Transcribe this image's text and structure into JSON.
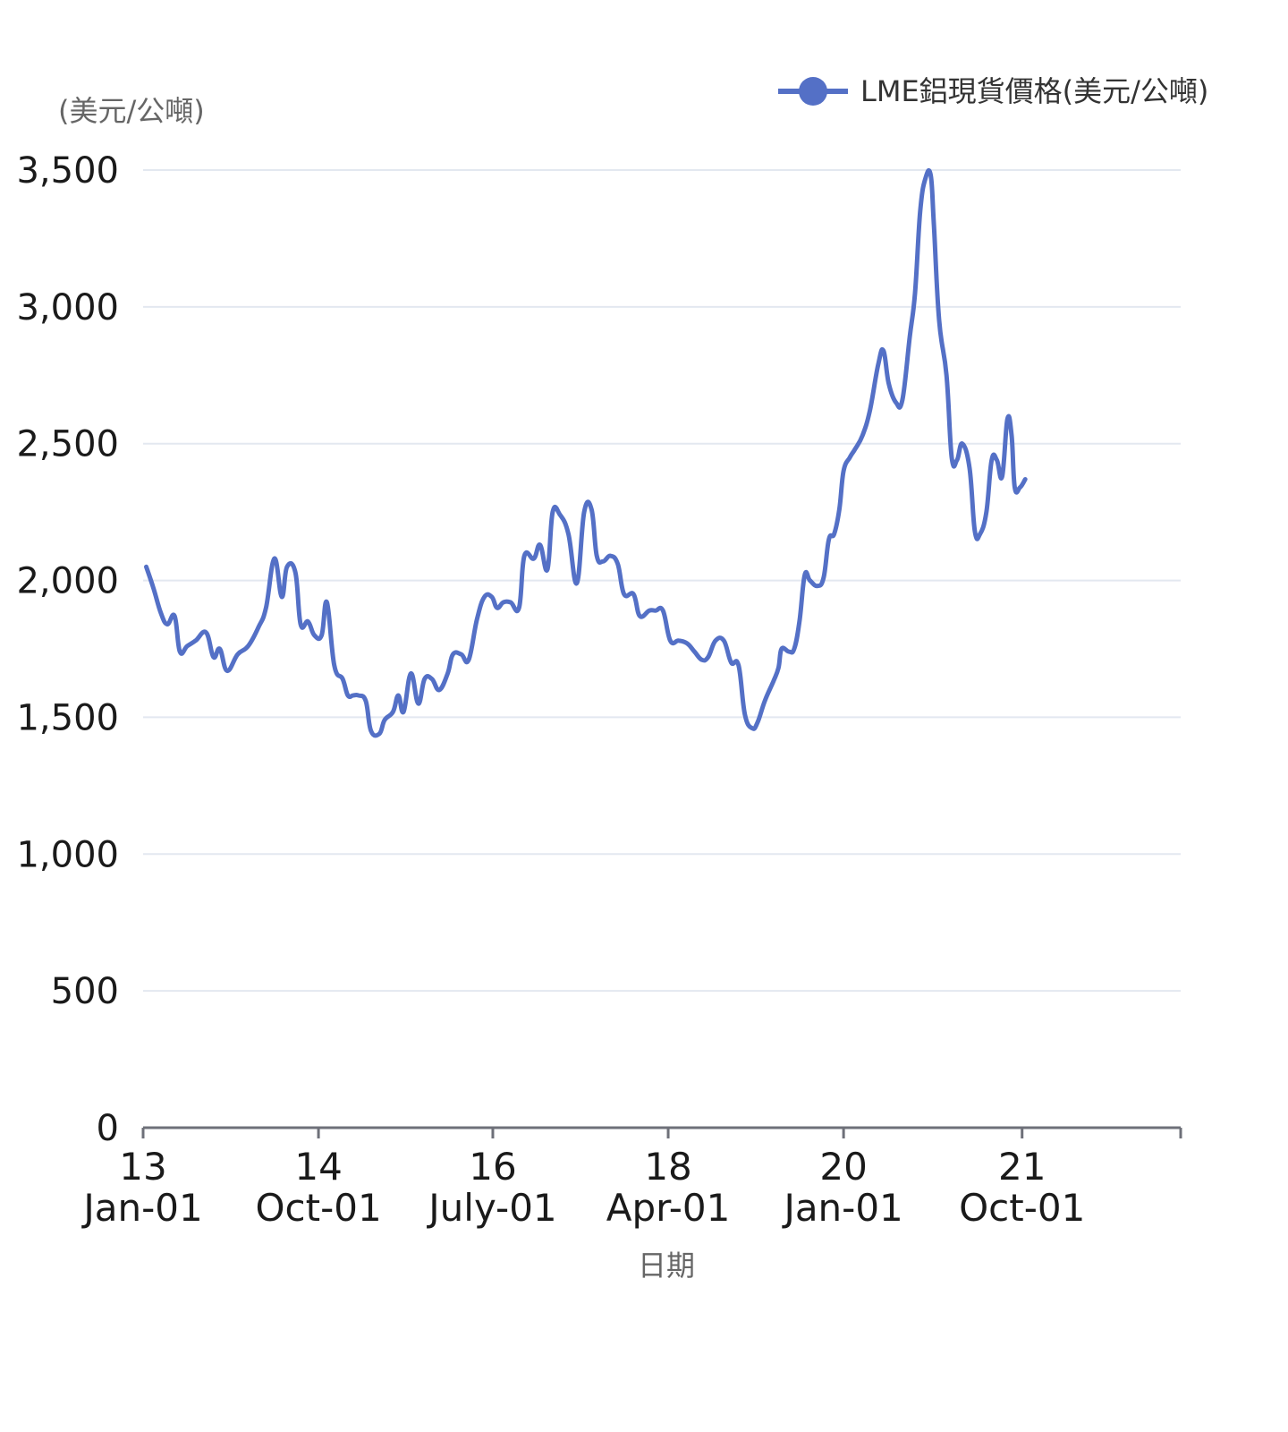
{
  "chart_data": {
    "type": "line",
    "unit_label": "(美元/公噸)",
    "xlabel": "日期",
    "ylabel": "(美元/公噸)",
    "ylim": [
      0,
      3500
    ],
    "yticks": [
      0,
      500,
      1000,
      1500,
      2000,
      2500,
      3000,
      3500
    ],
    "ytick_labels": [
      "0",
      "500",
      "1,000",
      "1,500",
      "2,000",
      "2,500",
      "3,000",
      "3,500"
    ],
    "xlim": [
      2013.0,
      2022.88
    ],
    "xticks": [
      {
        "x": 2013.0,
        "line1": "13",
        "line2": "Jan-01"
      },
      {
        "x": 2014.67,
        "line1": "14",
        "line2": "Oct-01"
      },
      {
        "x": 2016.33,
        "line1": "16",
        "line2": "July-01"
      },
      {
        "x": 2018.0,
        "line1": "18",
        "line2": "Apr-01"
      },
      {
        "x": 2019.67,
        "line1": "20",
        "line2": "Jan-01"
      },
      {
        "x": 2021.37,
        "line1": "21",
        "line2": "Oct-01"
      }
    ],
    "grid": true,
    "legend_position": "top-right",
    "series": [
      {
        "name": "LME鋁現貨價格(美元/公噸)",
        "color": "#5470c6",
        "points": [
          [
            2013.03,
            2050
          ],
          [
            2013.1,
            1970
          ],
          [
            2013.17,
            1880
          ],
          [
            2013.23,
            1840
          ],
          [
            2013.3,
            1870
          ],
          [
            2013.35,
            1740
          ],
          [
            2013.42,
            1760
          ],
          [
            2013.5,
            1780
          ],
          [
            2013.6,
            1810
          ],
          [
            2013.67,
            1720
          ],
          [
            2013.73,
            1750
          ],
          [
            2013.8,
            1670
          ],
          [
            2013.9,
            1730
          ],
          [
            2014.0,
            1760
          ],
          [
            2014.1,
            1830
          ],
          [
            2014.17,
            1900
          ],
          [
            2014.25,
            2080
          ],
          [
            2014.32,
            1940
          ],
          [
            2014.37,
            2050
          ],
          [
            2014.45,
            2030
          ],
          [
            2014.5,
            1840
          ],
          [
            2014.57,
            1850
          ],
          [
            2014.63,
            1800
          ],
          [
            2014.7,
            1800
          ],
          [
            2014.75,
            1920
          ],
          [
            2014.82,
            1690
          ],
          [
            2014.9,
            1640
          ],
          [
            2014.95,
            1580
          ],
          [
            2015.0,
            1580
          ],
          [
            2015.05,
            1580
          ],
          [
            2015.12,
            1560
          ],
          [
            2015.17,
            1450
          ],
          [
            2015.25,
            1440
          ],
          [
            2015.3,
            1490
          ],
          [
            2015.38,
            1520
          ],
          [
            2015.43,
            1580
          ],
          [
            2015.48,
            1520
          ],
          [
            2015.55,
            1660
          ],
          [
            2015.62,
            1550
          ],
          [
            2015.68,
            1640
          ],
          [
            2015.75,
            1640
          ],
          [
            2015.82,
            1600
          ],
          [
            2015.9,
            1660
          ],
          [
            2015.95,
            1730
          ],
          [
            2016.03,
            1730
          ],
          [
            2016.1,
            1710
          ],
          [
            2016.18,
            1860
          ],
          [
            2016.25,
            1940
          ],
          [
            2016.32,
            1940
          ],
          [
            2016.37,
            1900
          ],
          [
            2016.43,
            1920
          ],
          [
            2016.5,
            1920
          ],
          [
            2016.58,
            1900
          ],
          [
            2016.63,
            2090
          ],
          [
            2016.72,
            2080
          ],
          [
            2016.78,
            2130
          ],
          [
            2016.85,
            2040
          ],
          [
            2016.9,
            2250
          ],
          [
            2016.97,
            2240
          ],
          [
            2017.05,
            2170
          ],
          [
            2017.13,
            1990
          ],
          [
            2017.2,
            2250
          ],
          [
            2017.27,
            2260
          ],
          [
            2017.32,
            2090
          ],
          [
            2017.38,
            2070
          ],
          [
            2017.45,
            2090
          ],
          [
            2017.52,
            2060
          ],
          [
            2017.58,
            1950
          ],
          [
            2017.67,
            1950
          ],
          [
            2017.73,
            1870
          ],
          [
            2017.82,
            1890
          ],
          [
            2017.88,
            1890
          ],
          [
            2017.95,
            1890
          ],
          [
            2018.02,
            1780
          ],
          [
            2018.1,
            1780
          ],
          [
            2018.18,
            1770
          ],
          [
            2018.25,
            1740
          ],
          [
            2018.32,
            1710
          ],
          [
            2018.38,
            1720
          ],
          [
            2018.45,
            1780
          ],
          [
            2018.53,
            1780
          ],
          [
            2018.6,
            1700
          ],
          [
            2018.67,
            1690
          ],
          [
            2018.73,
            1510
          ],
          [
            2018.8,
            1460
          ],
          [
            2018.85,
            1480
          ],
          [
            2018.92,
            1560
          ],
          [
            2019.0,
            1630
          ],
          [
            2019.05,
            1680
          ],
          [
            2019.08,
            1750
          ],
          [
            2019.15,
            1740
          ],
          [
            2019.2,
            1750
          ],
          [
            2019.25,
            1850
          ],
          [
            2019.3,
            2020
          ],
          [
            2019.35,
            2000
          ],
          [
            2019.42,
            1980
          ],
          [
            2019.48,
            2010
          ],
          [
            2019.53,
            2150
          ],
          [
            2019.58,
            2170
          ],
          [
            2019.63,
            2260
          ],
          [
            2019.67,
            2400
          ],
          [
            2019.73,
            2450
          ],
          [
            2019.78,
            2480
          ],
          [
            2019.85,
            2530
          ],
          [
            2019.92,
            2620
          ],
          [
            2020.0,
            2790
          ],
          [
            2020.05,
            2840
          ],
          [
            2020.1,
            2720
          ],
          [
            2020.17,
            2650
          ],
          [
            2020.23,
            2660
          ],
          [
            2020.3,
            2890
          ],
          [
            2020.35,
            3050
          ],
          [
            2020.4,
            3350
          ],
          [
            2020.45,
            3470
          ],
          [
            2020.5,
            3480
          ],
          [
            2020.53,
            3300
          ],
          [
            2020.58,
            2950
          ],
          [
            2020.65,
            2750
          ],
          [
            2020.7,
            2450
          ],
          [
            2020.75,
            2440
          ],
          [
            2020.8,
            2500
          ],
          [
            2020.87,
            2410
          ],
          [
            2020.92,
            2180
          ],
          [
            2020.97,
            2170
          ],
          [
            2021.03,
            2250
          ],
          [
            2021.08,
            2440
          ],
          [
            2021.13,
            2440
          ],
          [
            2021.18,
            2380
          ],
          [
            2021.23,
            2590
          ],
          [
            2021.27,
            2530
          ],
          [
            2021.3,
            2340
          ],
          [
            2021.35,
            2340
          ],
          [
            2021.4,
            2370
          ]
        ]
      }
    ]
  }
}
